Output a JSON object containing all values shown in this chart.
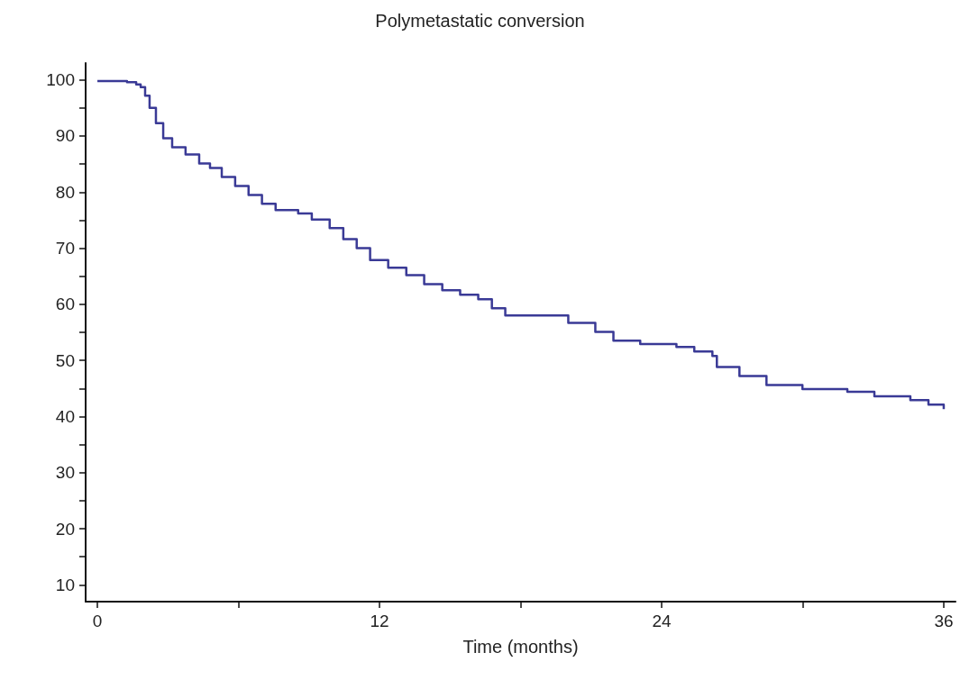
{
  "chart_data": {
    "type": "step",
    "title": "Polymetastatic conversion",
    "xlabel": "Time (months)",
    "x": [
      0,
      1.26,
      1.65,
      1.84,
      2.03,
      2.22,
      2.49,
      2.8,
      3.18,
      3.75,
      4.33,
      4.79,
      5.29,
      5.86,
      6.43,
      7.0,
      7.58,
      8.54,
      9.12,
      9.88,
      10.46,
      11.03,
      11.6,
      12.37,
      13.14,
      13.9,
      14.67,
      15.43,
      16.2,
      16.78,
      17.35,
      19.26,
      20.03,
      21.18,
      21.95,
      23.09,
      24.63,
      25.39,
      26.16,
      26.35,
      27.31,
      28.46,
      29.99,
      31.9,
      33.05,
      34.58,
      35.35,
      36
    ],
    "series": [
      {
        "color": "#3a3a96",
        "values": [
          99.8,
          99.6,
          99.2,
          98.7,
          97.2,
          95,
          92.3,
          89.6,
          88,
          86.7,
          85.1,
          84.3,
          82.7,
          81.1,
          79.5,
          77.9,
          76.8,
          76.2,
          75.1,
          73.6,
          71.6,
          70,
          67.9,
          66.5,
          65.2,
          63.6,
          62.5,
          61.7,
          60.9,
          59.3,
          58,
          58,
          56.7,
          55.1,
          53.5,
          52.9,
          52.4,
          51.6,
          50.8,
          48.8,
          47.2,
          45.6,
          44.9,
          44.4,
          43.6,
          42.9,
          42.1,
          41.3
        ]
      }
    ],
    "xlim": [
      -0.5,
      36.5
    ],
    "ylim": [
      7,
      103
    ],
    "xticks": [
      0,
      {
        "value": 6,
        "label": null
      },
      12,
      {
        "value": 18,
        "label": null
      },
      24,
      {
        "value": 30,
        "label": null
      },
      36
    ],
    "yticks": [
      10,
      {
        "value": 15,
        "label": null
      },
      20,
      {
        "value": 25,
        "label": null
      },
      30,
      {
        "value": 35,
        "label": null
      },
      40,
      {
        "value": 45,
        "label": null
      },
      50,
      {
        "value": 55,
        "label": null
      },
      60,
      {
        "value": 65,
        "label": null
      },
      70,
      {
        "value": 75,
        "label": null
      },
      80,
      {
        "value": 85,
        "label": null
      },
      90,
      {
        "value": 95,
        "label": null
      },
      100
    ],
    "grid": false,
    "marker": "none",
    "line_style": "solid"
  }
}
